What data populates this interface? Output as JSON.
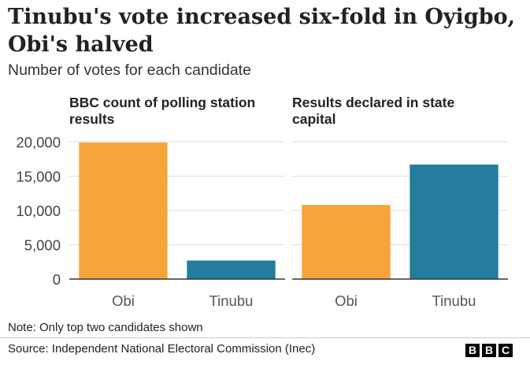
{
  "title": "Tinubu's vote increased six-fold in Oyigbo, Obi's halved",
  "subtitle": "Number of votes for each candidate",
  "note": "Note: Only top two candidates shown",
  "source": "Source: Independent National Electoral Commission (Inec)",
  "logo": [
    "B",
    "B",
    "C"
  ],
  "colors": {
    "Obi": "#f5a43a",
    "Tinubu": "#237d9c"
  },
  "y_ticks": [
    "20,000",
    "15,000",
    "10,000",
    "5,000",
    "0"
  ],
  "chart_data": [
    {
      "type": "bar",
      "title": "BBC count of polling station results",
      "categories": [
        "Obi",
        "Tinubu"
      ],
      "values": [
        19900,
        2700
      ],
      "ylim": [
        0,
        20000
      ],
      "grid": true
    },
    {
      "type": "bar",
      "title": "Results declared in state capital",
      "categories": [
        "Obi",
        "Tinubu"
      ],
      "values": [
        10800,
        16700
      ],
      "ylim": [
        0,
        20000
      ],
      "grid": true
    }
  ]
}
